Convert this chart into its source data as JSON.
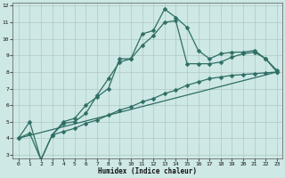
{
  "xlabel": "Humidex (Indice chaleur)",
  "bg_color": "#cde8e5",
  "grid_color": "#b0c8c5",
  "line_color": "#2e6e65",
  "xlim": [
    -0.5,
    23.5
  ],
  "ylim": [
    2.8,
    12.2
  ],
  "xticks": [
    0,
    1,
    2,
    3,
    4,
    5,
    6,
    7,
    8,
    9,
    10,
    11,
    12,
    13,
    14,
    15,
    16,
    17,
    18,
    19,
    20,
    21,
    22,
    23
  ],
  "yticks": [
    3,
    4,
    5,
    6,
    7,
    8,
    9,
    10,
    11,
    12
  ],
  "series1_x": [
    0,
    1,
    2,
    3,
    4,
    5,
    6,
    7,
    8,
    9,
    10,
    11,
    12,
    13,
    14,
    15,
    16,
    17,
    18,
    19,
    20,
    21,
    22,
    23
  ],
  "series1_y": [
    4.0,
    5.0,
    2.7,
    4.2,
    5.0,
    5.2,
    6.0,
    6.5,
    7.0,
    8.8,
    8.8,
    10.3,
    10.5,
    11.8,
    11.3,
    10.7,
    9.3,
    8.8,
    9.1,
    9.2,
    9.2,
    9.3,
    8.8,
    8.0
  ],
  "series2_x": [
    3,
    4,
    5,
    6,
    7,
    8,
    9,
    10,
    11,
    12,
    13,
    14,
    15,
    16,
    17,
    18,
    19,
    20,
    21,
    22,
    23
  ],
  "series2_y": [
    4.2,
    4.9,
    5.0,
    5.5,
    6.6,
    7.6,
    8.6,
    8.8,
    9.6,
    10.2,
    11.0,
    11.1,
    8.5,
    8.5,
    8.5,
    8.6,
    8.9,
    9.1,
    9.2,
    8.8,
    8.1
  ],
  "series3_x": [
    0,
    1,
    2,
    3,
    4,
    5,
    6,
    7,
    8,
    9,
    10,
    11,
    12,
    13,
    14,
    15,
    16,
    17,
    18,
    19,
    20,
    21,
    22,
    23
  ],
  "series3_y": [
    4.0,
    4.3,
    2.7,
    4.2,
    4.4,
    4.6,
    4.9,
    5.1,
    5.4,
    5.7,
    5.9,
    6.2,
    6.4,
    6.7,
    6.9,
    7.2,
    7.4,
    7.6,
    7.7,
    7.8,
    7.85,
    7.9,
    7.95,
    8.0
  ],
  "series4_x": [
    0,
    23
  ],
  "series4_y": [
    4.0,
    8.0
  ]
}
